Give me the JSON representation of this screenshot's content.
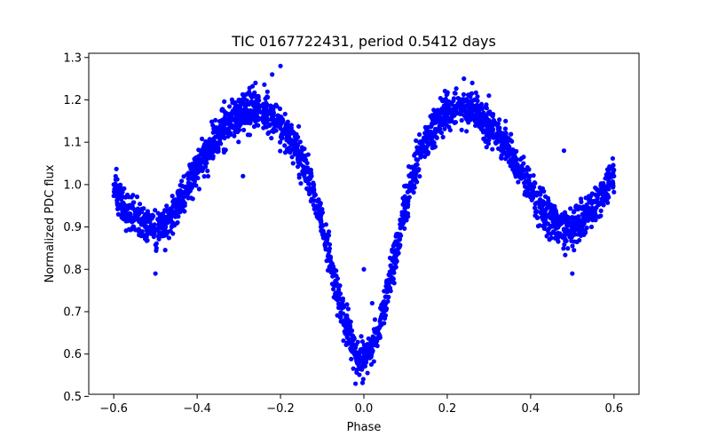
{
  "chart_data": {
    "type": "scatter",
    "title": "TIC 0167722431, period 0.5412 days",
    "xlabel": "Phase",
    "ylabel": "Normalized PDC flux",
    "xlim": [
      -0.66,
      0.66
    ],
    "ylim": [
      0.505,
      1.31
    ],
    "xticks": [
      -0.6,
      -0.4,
      -0.2,
      0.0,
      0.2,
      0.4,
      0.6
    ],
    "xtick_labels": [
      "−0.6",
      "−0.4",
      "−0.2",
      "0.0",
      "0.2",
      "0.4",
      "0.6"
    ],
    "yticks": [
      0.5,
      0.6,
      0.7,
      0.8,
      0.9,
      1.0,
      1.1,
      1.2,
      1.3
    ],
    "ytick_labels": [
      "0.5",
      "0.6",
      "0.7",
      "0.8",
      "0.9",
      "1.0",
      "1.1",
      "1.2",
      "1.3"
    ],
    "grid": false,
    "marker_color": "#0000ff",
    "series": [
      {
        "x": [
          -0.6,
          -0.58,
          -0.56,
          -0.54,
          -0.52,
          -0.5,
          -0.48,
          -0.46,
          -0.44,
          -0.42,
          -0.4,
          -0.38,
          -0.36,
          -0.34,
          -0.32,
          -0.3,
          -0.28,
          -0.26,
          -0.24,
          -0.22,
          -0.2,
          -0.18,
          -0.16,
          -0.14,
          -0.12,
          -0.1,
          -0.08,
          -0.06,
          -0.04,
          -0.02,
          0.0,
          0.02,
          0.04,
          0.06,
          0.08,
          0.1,
          0.12,
          0.14,
          0.16,
          0.18,
          0.2,
          0.22,
          0.24,
          0.26,
          0.28,
          0.3,
          0.32,
          0.34,
          0.36,
          0.38,
          0.4,
          0.42,
          0.44,
          0.46,
          0.48,
          0.5,
          0.52,
          0.54,
          0.56,
          0.58,
          0.6
        ],
        "y": [
          1.0,
          0.955,
          0.93,
          0.915,
          0.9,
          0.895,
          0.905,
          0.925,
          0.96,
          1.0,
          1.04,
          1.075,
          1.105,
          1.13,
          1.15,
          1.165,
          1.175,
          1.18,
          1.175,
          1.16,
          1.14,
          1.115,
          1.085,
          1.04,
          0.98,
          0.905,
          0.82,
          0.73,
          0.655,
          0.605,
          0.585,
          0.61,
          0.67,
          0.76,
          0.86,
          0.95,
          1.03,
          1.085,
          1.125,
          1.155,
          1.175,
          1.185,
          1.185,
          1.175,
          1.16,
          1.14,
          1.115,
          1.09,
          1.06,
          1.025,
          0.99,
          0.955,
          0.925,
          0.905,
          0.895,
          0.9,
          0.915,
          0.935,
          0.96,
          0.99,
          1.02
        ],
        "outliers": {
          "x": [
            -0.5,
            -0.2,
            -0.22,
            -0.26,
            -0.3,
            -0.35,
            -0.29,
            0.24,
            0.26,
            0.3,
            0.34,
            0.5,
            0.48,
            0.0,
            0.02,
            -0.02
          ],
          "y": [
            0.79,
            1.28,
            1.26,
            1.24,
            1.2,
            1.13,
            1.02,
            1.25,
            1.24,
            1.21,
            1.15,
            0.79,
            1.08,
            0.8,
            0.72,
            0.53
          ]
        }
      }
    ]
  }
}
